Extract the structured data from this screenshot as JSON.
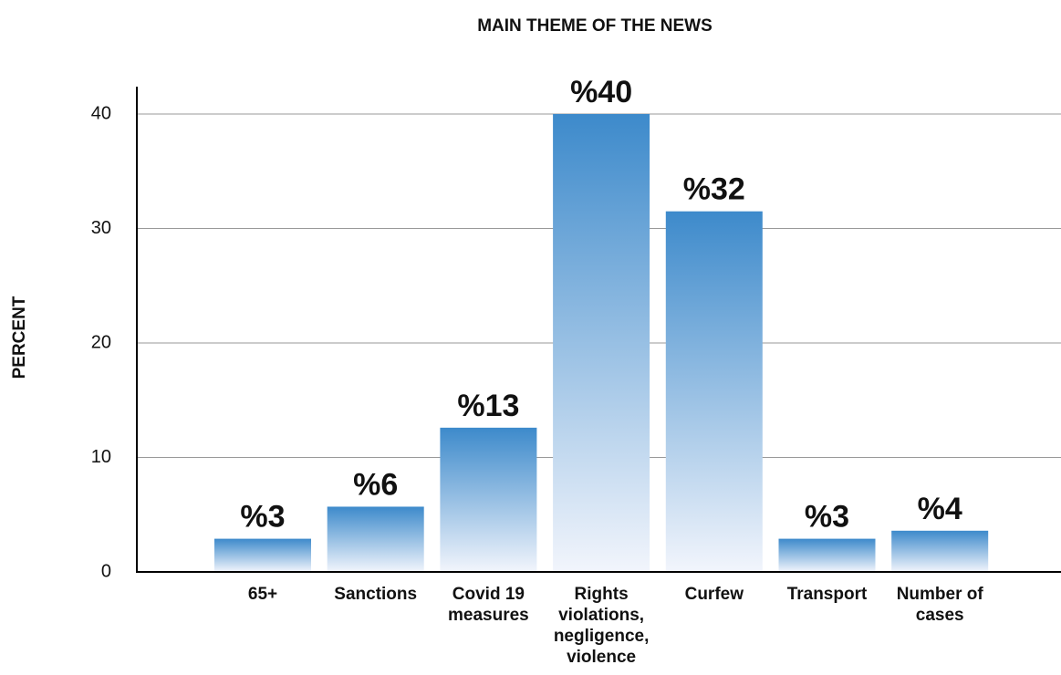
{
  "chart_data": {
    "type": "bar",
    "title": "MAIN THEME OF THE NEWS",
    "y_label": "PERCENT",
    "categories": [
      "65+",
      "Sanctions",
      "Covid 19 measures",
      "Rights violations, negligence, violence",
      "Curfew",
      "Transport",
      "Number of cases"
    ],
    "values": [
      2.9,
      5.7,
      12.6,
      40,
      31.5,
      2.9,
      3.6
    ],
    "value_labels": [
      "%3",
      "%6",
      "%13",
      "%40",
      "%32",
      "%3",
      "%4"
    ],
    "color": "#3d8acb",
    "ylim": [
      0,
      40
    ],
    "yticks": [
      0,
      10,
      20,
      30,
      40
    ],
    "grid": true
  }
}
